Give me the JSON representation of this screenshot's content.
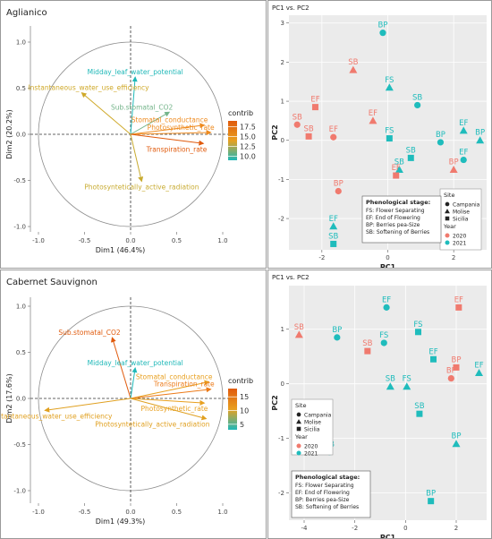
{
  "chart_data": [
    {
      "type": "pca_biplot",
      "title": "Aglianico",
      "xlabel": "Dim1 (46.4%)",
      "ylabel": "Dim2 (20.2%)",
      "xlim": [
        -1.0,
        1.0
      ],
      "ylim": [
        -1.0,
        1.0
      ],
      "ticks": [
        "-1.0",
        "-0.5",
        "0.0",
        "0.5",
        "1.0"
      ],
      "legend_title": "contrib",
      "legend_ticks": [
        "17.5",
        "15.0",
        "12.5",
        "10.0"
      ],
      "legend_range": [
        9.0,
        19.0
      ],
      "colors": {
        "low": "#1fb8b8",
        "mid": "#e8a020",
        "high": "#e05a0c"
      },
      "variables": [
        {
          "name": "Midday_leaf_water_potential",
          "x": 0.05,
          "y": 0.62,
          "contrib": 10.2,
          "color": "#1fb8b8"
        },
        {
          "name": "Instantaneous_water_use_efficiency",
          "x": -0.53,
          "y": 0.45,
          "contrib": 12.0,
          "color": "#cfa92a"
        },
        {
          "name": "Sub.stomatal_CO2",
          "x": 0.42,
          "y": 0.24,
          "contrib": 10.6,
          "color": "#74b48a"
        },
        {
          "name": "Stomatal_conductance",
          "x": 0.8,
          "y": 0.1,
          "contrib": 15.6,
          "color": "#ee8a1e"
        },
        {
          "name": "Photosynthetic_rate",
          "x": 0.87,
          "y": 0.02,
          "contrib": 16.4,
          "color": "#ee8a1e"
        },
        {
          "name": "Transpiration_rate",
          "x": 0.79,
          "y": -0.1,
          "contrib": 17.8,
          "color": "#e05a0c"
        },
        {
          "name": "Photosyntetically_active_radiation",
          "x": 0.12,
          "y": -0.51,
          "contrib": 11.8,
          "color": "#c8ab30"
        }
      ]
    },
    {
      "type": "scatter",
      "title": "PC1 vs. PC2",
      "xlabel": "PC1",
      "ylabel": "PC2",
      "xlim": [
        -3.0,
        3.0
      ],
      "ylim": [
        -2.8,
        3.2
      ],
      "xticks": [
        -2,
        0,
        2
      ],
      "yticks": [
        -2,
        -1,
        0,
        1,
        2,
        3
      ],
      "legend": {
        "site_title": "Site",
        "sites": [
          "Campania",
          "Molise",
          "Sicilia"
        ],
        "year_title": "Year",
        "years": [
          "2020",
          "2021"
        ],
        "stage_title": "Phenological stage:",
        "stages": [
          "FS: Flower Separating",
          "EF: End of Flowering",
          "BP: Berries pea-Size",
          "SB: Softening of Berries"
        ]
      },
      "points": [
        {
          "label": "BP",
          "x": -0.15,
          "y": 2.75,
          "site": "Campania",
          "year": "2021"
        },
        {
          "label": "SB",
          "x": -1.05,
          "y": 1.8,
          "site": "Molise",
          "year": "2020"
        },
        {
          "label": "FS",
          "x": 0.05,
          "y": 1.35,
          "site": "Molise",
          "year": "2021"
        },
        {
          "label": "SB",
          "x": 0.9,
          "y": 0.9,
          "site": "Campania",
          "year": "2021"
        },
        {
          "label": "EF",
          "x": -2.2,
          "y": 0.85,
          "site": "Sicilia",
          "year": "2020"
        },
        {
          "label": "SB",
          "x": -2.75,
          "y": 0.4,
          "site": "Campania",
          "year": "2020"
        },
        {
          "label": "EF",
          "x": -0.45,
          "y": 0.5,
          "site": "Molise",
          "year": "2020"
        },
        {
          "label": "SB",
          "x": -2.4,
          "y": 0.1,
          "site": "Sicilia",
          "year": "2020"
        },
        {
          "label": "EF",
          "x": -1.65,
          "y": 0.08,
          "site": "Campania",
          "year": "2020"
        },
        {
          "label": "FS",
          "x": 0.05,
          "y": 0.05,
          "site": "Sicilia",
          "year": "2021"
        },
        {
          "label": "EF",
          "x": 2.3,
          "y": 0.25,
          "site": "Molise",
          "year": "2021"
        },
        {
          "label": "BP",
          "x": 2.8,
          "y": 0.0,
          "site": "Molise",
          "year": "2021"
        },
        {
          "label": "BP",
          "x": 1.6,
          "y": -0.05,
          "site": "Campania",
          "year": "2021"
        },
        {
          "label": "SB",
          "x": 0.7,
          "y": -0.45,
          "site": "Sicilia",
          "year": "2021"
        },
        {
          "label": "SB",
          "x": 0.35,
          "y": -0.75,
          "site": "Molise",
          "year": "2021"
        },
        {
          "label": "EF",
          "x": 2.3,
          "y": -0.5,
          "site": "Campania",
          "year": "2021"
        },
        {
          "label": "BP",
          "x": 2.0,
          "y": -0.75,
          "site": "Molise",
          "year": "2020"
        },
        {
          "label": "EF",
          "x": 0.25,
          "y": -0.9,
          "site": "Sicilia",
          "year": "2020"
        },
        {
          "label": "BP",
          "x": -1.5,
          "y": -1.3,
          "site": "Campania",
          "year": "2020"
        },
        {
          "label": "EF",
          "x": -1.65,
          "y": -2.2,
          "site": "Molise",
          "year": "2021"
        },
        {
          "label": "SB",
          "x": -1.65,
          "y": -2.65,
          "site": "Sicilia",
          "year": "2021"
        }
      ]
    },
    {
      "type": "pca_biplot",
      "title": "Cabernet Sauvignon",
      "xlabel": "Dim1 (49.3%)",
      "ylabel": "Dim2 (17.6%)",
      "xlim": [
        -1.0,
        1.0
      ],
      "ylim": [
        -1.0,
        1.0
      ],
      "ticks": [
        "-1.0",
        "-0.5",
        "0.0",
        "0.5",
        "1.0"
      ],
      "legend_title": "contrib",
      "legend_ticks": [
        "15",
        "10",
        "5"
      ],
      "legend_range": [
        3.0,
        18.0
      ],
      "colors": {
        "low": "#1fb8b8",
        "mid": "#e8a020",
        "high": "#e05a0c"
      },
      "variables": [
        {
          "name": "Sub.stomatal_CO2",
          "x": -0.2,
          "y": 0.66,
          "contrib": 16.0,
          "color": "#e05a0c"
        },
        {
          "name": "Midday_leaf_water_potential",
          "x": 0.05,
          "y": 0.33,
          "contrib": 4.0,
          "color": "#1fb8b8"
        },
        {
          "name": "Stomatal_conductance",
          "x": 0.85,
          "y": 0.18,
          "contrib": 13.0,
          "color": "#e8a020"
        },
        {
          "name": "Transpiration_rate",
          "x": 0.87,
          "y": 0.1,
          "contrib": 14.5,
          "color": "#ec7a18"
        },
        {
          "name": "Photosynthetic_rate",
          "x": 0.8,
          "y": -0.05,
          "contrib": 13.0,
          "color": "#e8a020"
        },
        {
          "name": "Instantaneous_water_use_efficiency",
          "x": -0.93,
          "y": -0.13,
          "contrib": 11.0,
          "color": "#e0a020"
        },
        {
          "name": "Photosyntetically_active_radiation",
          "x": 0.82,
          "y": -0.22,
          "contrib": 12.0,
          "color": "#e0a020"
        }
      ]
    },
    {
      "type": "scatter",
      "title": "PC1 vs. PC2",
      "xlabel": "PC1",
      "ylabel": "PC2",
      "xlim": [
        -4.6,
        3.2
      ],
      "ylim": [
        -2.5,
        1.8
      ],
      "xticks": [
        -4,
        -2,
        0,
        2
      ],
      "yticks": [
        -2,
        -1,
        0,
        1
      ],
      "legend": {
        "site_title": "Site",
        "sites": [
          "Campania",
          "Molise",
          "Sicilia"
        ],
        "year_title": "Year",
        "years": [
          "2020",
          "2021"
        ],
        "stage_title": "Phenological stage:",
        "stages": [
          "FS: Flower Separating",
          "EF: End of Flowering",
          "BP: Berries pea-Size",
          "SB: Softening of Berries"
        ]
      },
      "points": [
        {
          "label": "EF",
          "x": -0.75,
          "y": 1.4,
          "site": "Campania",
          "year": "2021"
        },
        {
          "label": "EF",
          "x": 2.1,
          "y": 1.4,
          "site": "Sicilia",
          "year": "2020"
        },
        {
          "label": "SB",
          "x": -4.2,
          "y": 0.9,
          "site": "Molise",
          "year": "2020"
        },
        {
          "label": "BP",
          "x": -2.7,
          "y": 0.85,
          "site": "Campania",
          "year": "2021"
        },
        {
          "label": "FS",
          "x": 0.5,
          "y": 0.95,
          "site": "Sicilia",
          "year": "2021"
        },
        {
          "label": "FS",
          "x": -0.85,
          "y": 0.75,
          "site": "Campania",
          "year": "2021"
        },
        {
          "label": "SB",
          "x": -1.5,
          "y": 0.6,
          "site": "Sicilia",
          "year": "2020"
        },
        {
          "label": "EF",
          "x": 1.1,
          "y": 0.45,
          "site": "Sicilia",
          "year": "2021"
        },
        {
          "label": "BP",
          "x": 2.0,
          "y": 0.3,
          "site": "Sicilia",
          "year": "2020"
        },
        {
          "label": "BP",
          "x": 1.8,
          "y": 0.1,
          "site": "Campania",
          "year": "2020"
        },
        {
          "label": "EF",
          "x": 2.9,
          "y": 0.2,
          "site": "Molise",
          "year": "2021"
        },
        {
          "label": "SB",
          "x": -0.6,
          "y": -0.05,
          "site": "Molise",
          "year": "2021"
        },
        {
          "label": "FS",
          "x": 0.05,
          "y": -0.05,
          "site": "Molise",
          "year": "2021"
        },
        {
          "label": "SB",
          "x": 0.55,
          "y": -0.55,
          "site": "Sicilia",
          "year": "2021"
        },
        {
          "label": "BP",
          "x": 2.0,
          "y": -1.1,
          "site": "Molise",
          "year": "2021"
        },
        {
          "label": "SB",
          "x": -3.0,
          "y": -1.25,
          "site": "Campania",
          "year": "2021"
        },
        {
          "label": "BP",
          "x": 1.0,
          "y": -2.15,
          "site": "Sicilia",
          "year": "2021"
        },
        {
          "label": "EF",
          "x": -1.9,
          "y": -2.3,
          "site": "Molise",
          "year": "2020"
        }
      ]
    }
  ]
}
